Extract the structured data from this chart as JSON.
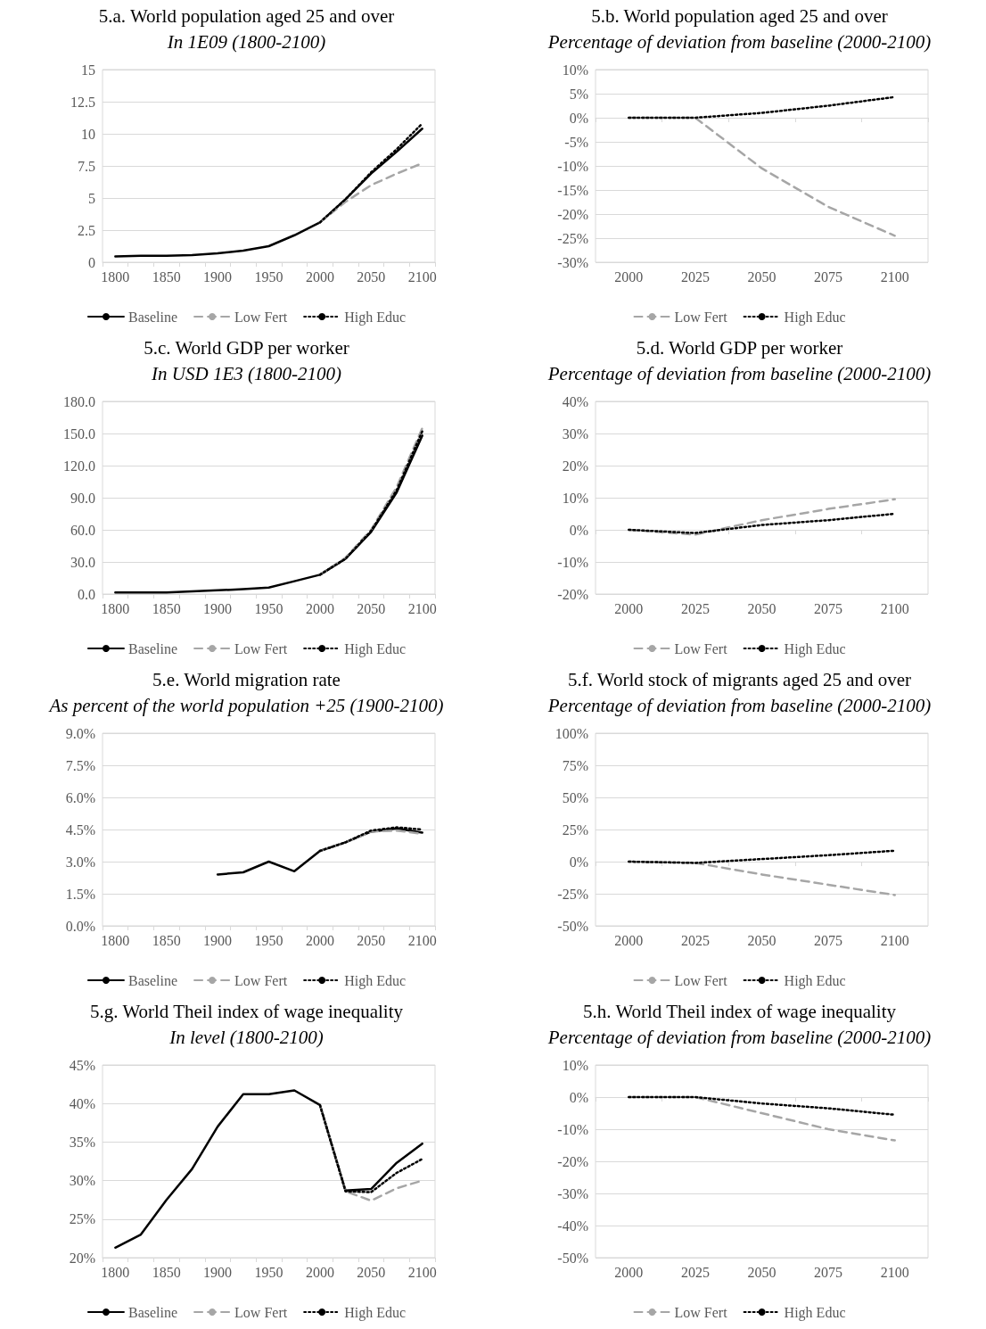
{
  "chart_data": [
    {
      "type": "line",
      "title": "5.a. World population aged 25 and over",
      "subtitle": "In 1E09 (1800-2100)",
      "categories": [
        "1800",
        null,
        "1850",
        null,
        "1900",
        null,
        "1950",
        null,
        "2000",
        null,
        "2050",
        null,
        "2100"
      ],
      "ylim": [
        0,
        15
      ],
      "yticks": [
        0,
        2.5,
        5,
        7.5,
        10,
        12.5,
        15
      ],
      "grid": "y",
      "legend": "bottom",
      "marker": "none",
      "series": [
        {
          "name": "Baseline",
          "color": "#000000",
          "line_style": "solid",
          "values": [
            0.45,
            0.5,
            0.5,
            0.55,
            0.7,
            0.9,
            1.25,
            2.1,
            3.1,
            4.9,
            6.9,
            8.6,
            10.4
          ]
        },
        {
          "name": "Low Fert",
          "color": "#a6a6a6",
          "line_style": "dashed",
          "values": [
            null,
            null,
            null,
            null,
            null,
            null,
            null,
            null,
            3.1,
            4.7,
            6.0,
            6.9,
            7.7
          ]
        },
        {
          "name": "High Educ",
          "color": "#000000",
          "line_style": "dotted",
          "values": [
            null,
            null,
            null,
            null,
            null,
            null,
            null,
            null,
            3.1,
            4.9,
            7.0,
            8.8,
            10.8
          ]
        }
      ]
    },
    {
      "type": "line",
      "title": "5.b. World population aged 25 and over",
      "subtitle": "Percentage of deviation from baseline (2000-2100)",
      "categories": [
        "2000",
        "2025",
        "2050",
        "2075",
        "2100"
      ],
      "ylim": [
        -30,
        10
      ],
      "yticks": [
        {
          "value": -30,
          "label": "-30%"
        },
        {
          "value": -25,
          "label": "-25%"
        },
        {
          "value": -20,
          "label": "-20%"
        },
        {
          "value": -15,
          "label": "-15%"
        },
        {
          "value": -10,
          "label": "-10%"
        },
        {
          "value": -5,
          "label": "-5%"
        },
        {
          "value": 0,
          "label": "0%"
        },
        {
          "value": 5,
          "label": "5%"
        },
        {
          "value": 10,
          "label": "10%"
        }
      ],
      "grid": "y",
      "legend": "bottom",
      "marker": "none",
      "series": [
        {
          "name": "Low Fert",
          "color": "#a6a6a6",
          "line_style": "dashed",
          "values": [
            0,
            0,
            -10.5,
            -18.5,
            -24.5
          ]
        },
        {
          "name": "High Educ",
          "color": "#000000",
          "line_style": "dotted",
          "values": [
            0,
            0,
            1,
            2.5,
            4.3
          ]
        }
      ]
    },
    {
      "type": "line",
      "title": "5.c. World GDP per worker",
      "subtitle": "In USD 1E3 (1800-2100)",
      "categories": [
        "1800",
        null,
        "1850",
        null,
        "1900",
        null,
        "1950",
        null,
        "2000",
        null,
        "2050",
        null,
        "2100"
      ],
      "ylim": [
        0,
        180
      ],
      "yticks": [
        {
          "value": 0,
          "label": "0.0"
        },
        {
          "value": 30,
          "label": "30.0"
        },
        {
          "value": 60,
          "label": "60.0"
        },
        {
          "value": 90,
          "label": "90.0"
        },
        {
          "value": 120,
          "label": "120.0"
        },
        {
          "value": 150,
          "label": "150.0"
        },
        {
          "value": 180,
          "label": "180.0"
        }
      ],
      "grid": "y",
      "legend": "bottom",
      "marker": "none",
      "series": [
        {
          "name": "Baseline",
          "color": "#000000",
          "line_style": "solid",
          "values": [
            1.5,
            1.5,
            1.5,
            2.5,
            3.5,
            4.5,
            6,
            12,
            18,
            33,
            58,
            95,
            148
          ]
        },
        {
          "name": "Low Fert",
          "color": "#a6a6a6",
          "line_style": "dashed",
          "values": [
            null,
            null,
            null,
            null,
            null,
            null,
            null,
            null,
            18,
            34,
            60,
            100,
            155
          ]
        },
        {
          "name": "High Educ",
          "color": "#000000",
          "line_style": "dotted",
          "values": [
            null,
            null,
            null,
            null,
            null,
            null,
            null,
            null,
            18,
            33,
            59,
            97,
            152
          ]
        }
      ]
    },
    {
      "type": "line",
      "title": "5.d. World GDP per worker",
      "subtitle": "Percentage of deviation from baseline (2000-2100)",
      "categories": [
        "2000",
        "2025",
        "2050",
        "2075",
        "2100"
      ],
      "ylim": [
        -20,
        40
      ],
      "yticks": [
        {
          "value": -20,
          "label": "-20%"
        },
        {
          "value": -10,
          "label": "-10%"
        },
        {
          "value": 0,
          "label": "0%"
        },
        {
          "value": 10,
          "label": "10%"
        },
        {
          "value": 20,
          "label": "20%"
        },
        {
          "value": 30,
          "label": "30%"
        },
        {
          "value": 40,
          "label": "40%"
        }
      ],
      "grid": "y",
      "legend": "bottom",
      "marker": "none",
      "series": [
        {
          "name": "Low Fert",
          "color": "#a6a6a6",
          "line_style": "dashed",
          "values": [
            0,
            -1.5,
            3,
            6.5,
            9.5
          ]
        },
        {
          "name": "High Educ",
          "color": "#000000",
          "line_style": "dotted",
          "values": [
            0,
            -1,
            1.5,
            3,
            5
          ]
        }
      ]
    },
    {
      "type": "line",
      "title": "5.e. World migration rate",
      "subtitle": "As percent of the world population +25 (1900-2100)",
      "categories": [
        "1800",
        null,
        "1850",
        null,
        "1900",
        null,
        "1950",
        null,
        "2000",
        null,
        "2050",
        null,
        "2100"
      ],
      "ylim": [
        0,
        9
      ],
      "yticks": [
        {
          "value": 0,
          "label": "0.0%"
        },
        {
          "value": 1.5,
          "label": "1.5%"
        },
        {
          "value": 3,
          "label": "3.0%"
        },
        {
          "value": 4.5,
          "label": "4.5%"
        },
        {
          "value": 6,
          "label": "6.0%"
        },
        {
          "value": 7.5,
          "label": "7.5%"
        },
        {
          "value": 9,
          "label": "9.0%"
        }
      ],
      "grid": "y",
      "legend": "bottom",
      "marker": "none",
      "series": [
        {
          "name": "Baseline",
          "color": "#000000",
          "line_style": "solid",
          "values": [
            null,
            null,
            null,
            null,
            2.4,
            2.5,
            3.0,
            2.55,
            3.5,
            3.9,
            4.4,
            4.55,
            4.35
          ]
        },
        {
          "name": "Low Fert",
          "color": "#a6a6a6",
          "line_style": "dashed",
          "values": [
            null,
            null,
            null,
            null,
            null,
            null,
            null,
            null,
            3.5,
            3.9,
            4.4,
            4.45,
            4.3
          ]
        },
        {
          "name": "High Educ",
          "color": "#000000",
          "line_style": "dotted",
          "values": [
            null,
            null,
            null,
            null,
            null,
            null,
            null,
            null,
            3.5,
            3.9,
            4.45,
            4.6,
            4.5
          ]
        }
      ]
    },
    {
      "type": "line",
      "title": "5.f. World stock of migrants aged 25 and over",
      "subtitle": "Percentage of deviation from baseline (2000-2100)",
      "categories": [
        "2000",
        "2025",
        "2050",
        "2075",
        "2100"
      ],
      "ylim": [
        -50,
        100
      ],
      "yticks": [
        {
          "value": -50,
          "label": "-50%"
        },
        {
          "value": -25,
          "label": "-25%"
        },
        {
          "value": 0,
          "label": "0%"
        },
        {
          "value": 25,
          "label": "25%"
        },
        {
          "value": 50,
          "label": "50%"
        },
        {
          "value": 75,
          "label": "75%"
        },
        {
          "value": 100,
          "label": "100%"
        }
      ],
      "grid": "y",
      "legend": "bottom",
      "marker": "none",
      "series": [
        {
          "name": "Low Fert",
          "color": "#a6a6a6",
          "line_style": "dashed",
          "values": [
            0,
            -1,
            -10,
            -18,
            -26
          ]
        },
        {
          "name": "High Educ",
          "color": "#000000",
          "line_style": "dotted",
          "values": [
            0,
            -1,
            2,
            5,
            8.5
          ]
        }
      ]
    },
    {
      "type": "line",
      "title": "5.g. World Theil index of wage inequality",
      "subtitle": "In level (1800-2100)",
      "categories": [
        "1800",
        null,
        "1850",
        null,
        "1900",
        null,
        "1950",
        null,
        "2000",
        null,
        "2050",
        null,
        "2100"
      ],
      "ylim": [
        20,
        45
      ],
      "yticks": [
        {
          "value": 20,
          "label": "20%"
        },
        {
          "value": 25,
          "label": "25%"
        },
        {
          "value": 30,
          "label": "30%"
        },
        {
          "value": 35,
          "label": "35%"
        },
        {
          "value": 40,
          "label": "40%"
        },
        {
          "value": 45,
          "label": "45%"
        }
      ],
      "grid": "y",
      "legend": "bottom",
      "marker": "none",
      "series": [
        {
          "name": "Baseline",
          "color": "#000000",
          "line_style": "solid",
          "values": [
            21.3,
            23,
            27.5,
            31.5,
            37,
            41.2,
            41.2,
            41.7,
            39.8,
            28.7,
            28.9,
            32.3,
            34.8
          ]
        },
        {
          "name": "Low Fert",
          "color": "#a6a6a6",
          "line_style": "dashed",
          "values": [
            null,
            null,
            null,
            null,
            null,
            null,
            null,
            null,
            39.8,
            28.6,
            27.4,
            29,
            30
          ]
        },
        {
          "name": "High Educ",
          "color": "#000000",
          "line_style": "dotted",
          "values": [
            null,
            null,
            null,
            null,
            null,
            null,
            null,
            null,
            39.8,
            28.6,
            28.5,
            31,
            32.8
          ]
        }
      ]
    },
    {
      "type": "line",
      "title": "5.h. World Theil index of wage inequality",
      "subtitle": "Percentage of deviation from baseline (2000-2100)",
      "categories": [
        "2000",
        "2025",
        "2050",
        "2075",
        "2100"
      ],
      "ylim": [
        -50,
        10
      ],
      "yticks": [
        {
          "value": -50,
          "label": "-50%"
        },
        {
          "value": -40,
          "label": "-40%"
        },
        {
          "value": -30,
          "label": "-30%"
        },
        {
          "value": -20,
          "label": "-20%"
        },
        {
          "value": -10,
          "label": "-10%"
        },
        {
          "value": 0,
          "label": "0%"
        },
        {
          "value": 10,
          "label": "10%"
        }
      ],
      "grid": "y",
      "legend": "bottom",
      "marker": "none",
      "series": [
        {
          "name": "Low Fert",
          "color": "#a6a6a6",
          "line_style": "dashed",
          "values": [
            0,
            0,
            -5,
            -10,
            -13.5
          ]
        },
        {
          "name": "High Educ",
          "color": "#000000",
          "line_style": "dotted",
          "values": [
            0,
            0,
            -2,
            -3.5,
            -5.5
          ]
        }
      ]
    }
  ]
}
